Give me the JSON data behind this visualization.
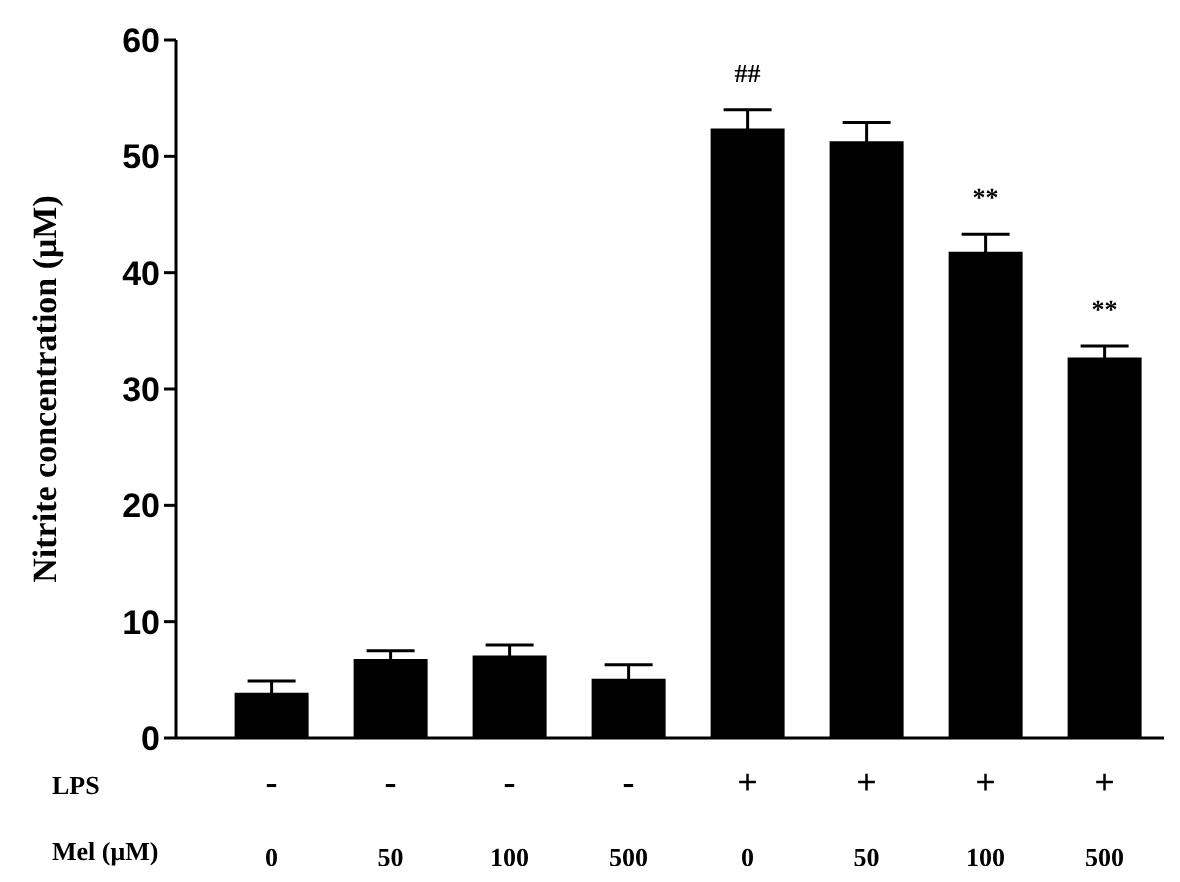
{
  "chart_data": {
    "type": "bar",
    "ylabel": "Nitrite concentration (μM)",
    "categories": [
      "-\n0",
      "-\n50",
      "-\n100",
      "-\n500",
      "+\n0",
      "+\n50",
      "+\n100",
      "+\n500"
    ],
    "values": [
      3.9,
      6.8,
      7.1,
      5.1,
      52.4,
      51.3,
      41.8,
      32.7
    ],
    "errors": [
      1.0,
      0.7,
      0.9,
      1.2,
      1.6,
      1.6,
      1.5,
      1.0
    ],
    "color": "#000000",
    "ylim": [
      0,
      60
    ],
    "yticks": [
      0,
      10,
      20,
      30,
      40,
      50,
      60
    ],
    "grid": false,
    "legend": false,
    "annotations": [
      "LPS",
      "Mel (μM)",
      {
        "text": "##",
        "x": "+\n0",
        "y": 54.0
      },
      {
        "text": "**",
        "x": "+\n100",
        "y": 43.3
      },
      {
        "text": "**",
        "x": "+\n500",
        "y": 33.7
      }
    ]
  }
}
